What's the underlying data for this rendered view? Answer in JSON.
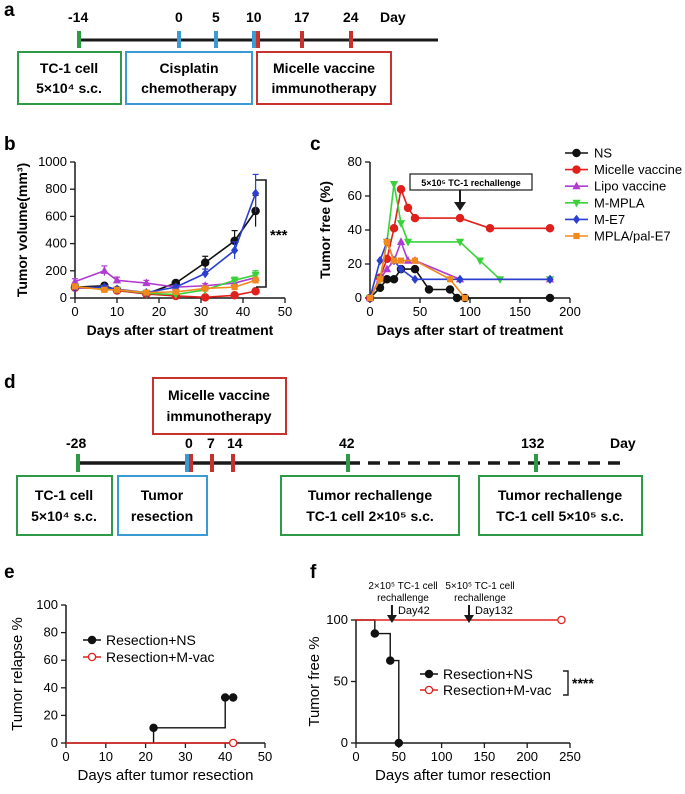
{
  "panels": {
    "a": {
      "letter": "a",
      "axis_label": "Day",
      "days": [
        "-14",
        "0",
        "5",
        "10",
        "17",
        "24"
      ],
      "boxes": [
        {
          "line1": "TC-1 cell",
          "line2": "5×10⁴ s.c.",
          "color": "#2e9a47"
        },
        {
          "line1": "Cisplatin",
          "line2": "chemotherapy",
          "color": "#3a9ad3"
        },
        {
          "line1": "Micelle vaccine",
          "line2": "immunotherapy",
          "color": "#c8322e"
        }
      ]
    },
    "d": {
      "letter": "d",
      "axis_label": "Day",
      "days": [
        "-28",
        "0",
        "7",
        "14",
        "42",
        "132"
      ],
      "top_box": {
        "line1": "Micelle vaccine",
        "line2": "immunotherapy"
      },
      "boxes": [
        {
          "line1": "TC-1 cell",
          "line2": "5×10⁴ s.c."
        },
        {
          "line1": "Tumor",
          "line2": "resection"
        },
        {
          "line1": "Tumor rechallenge",
          "line2": "TC-1 cell 2×10⁵ s.c."
        },
        {
          "line1": "Tumor rechallenge",
          "line2": "TC-1 cell 5×10⁵ s.c."
        }
      ]
    }
  },
  "colors": {
    "green": "#2e9a47",
    "blue": "#3a9ad3",
    "red": "#c8322e",
    "ns": "#111111",
    "micelle": "#e0201b",
    "lipo": "#b03bd1",
    "mmpla": "#3bd13b",
    "me7": "#2a3fd1",
    "mpla": "#f08a1e"
  },
  "chart_data": [
    {
      "panel": "b",
      "type": "line",
      "xlabel": "Days after start of treatment",
      "ylabel": "Tumor volume(mm³)",
      "xlim": [
        0,
        50
      ],
      "ylim": [
        0,
        1000
      ],
      "xticks": [
        "0",
        "10",
        "20",
        "30",
        "40",
        "50"
      ],
      "yticks": [
        "0",
        "200",
        "400",
        "600",
        "800",
        "1000"
      ],
      "annotation": "***",
      "x": [
        0,
        7,
        10,
        17,
        24,
        31,
        38,
        43
      ],
      "series": [
        {
          "name": "NS",
          "key": "ns",
          "values": [
            80,
            90,
            60,
            30,
            110,
            260,
            420,
            640
          ]
        },
        {
          "name": "Micelle vaccine",
          "key": "micelle",
          "values": [
            75,
            70,
            55,
            30,
            15,
            5,
            20,
            50
          ]
        },
        {
          "name": "Lipo vaccine",
          "key": "lipo",
          "values": [
            120,
            200,
            130,
            110,
            80,
            90,
            110,
            150
          ]
        },
        {
          "name": "M-MPLA",
          "key": "mmpla",
          "values": [
            80,
            70,
            60,
            35,
            25,
            60,
            130,
            170
          ]
        },
        {
          "name": "M-E7",
          "key": "me7",
          "values": [
            75,
            80,
            65,
            40,
            80,
            180,
            350,
            770
          ]
        },
        {
          "name": "MPLA/pal-E7",
          "key": "mpla",
          "values": [
            85,
            60,
            60,
            40,
            45,
            70,
            80,
            130
          ]
        }
      ]
    },
    {
      "panel": "c",
      "type": "line",
      "xlabel": "Days after start of treatment",
      "ylabel": "Tumor free (%)",
      "xlim": [
        0,
        200
      ],
      "ylim": [
        0,
        80
      ],
      "xticks": [
        "0",
        "50",
        "100",
        "150",
        "200"
      ],
      "yticks": [
        "0",
        "20",
        "40",
        "60",
        "80"
      ],
      "rechallenge_label": "5×10⁵ TC-1 rechallenge",
      "series": [
        {
          "name": "NS",
          "key": "ns",
          "x": [
            0,
            10,
            17,
            24,
            31,
            45,
            59,
            80,
            87,
            95,
            180
          ],
          "values": [
            0,
            6,
            11,
            11,
            17,
            17,
            5,
            5,
            0,
            0,
            0
          ]
        },
        {
          "name": "Micelle vaccine",
          "key": "micelle",
          "x": [
            0,
            10,
            17,
            24,
            31,
            38,
            45,
            90,
            120,
            180
          ],
          "values": [
            0,
            12,
            23,
            41,
            64,
            53,
            47,
            47,
            41,
            41
          ]
        },
        {
          "name": "Lipo vaccine",
          "key": "lipo",
          "x": [
            0,
            10,
            17,
            24,
            31,
            38,
            45,
            90,
            180
          ],
          "values": [
            0,
            11,
            17,
            22,
            33,
            22,
            22,
            11,
            11
          ]
        },
        {
          "name": "M-MPLA",
          "key": "mmpla",
          "x": [
            0,
            10,
            17,
            24,
            31,
            38,
            90,
            110,
            130,
            180
          ],
          "values": [
            0,
            11,
            33,
            67,
            44,
            33,
            33,
            22,
            11,
            11
          ]
        },
        {
          "name": "M-E7",
          "key": "me7",
          "x": [
            0,
            10,
            17,
            24,
            31,
            45,
            90,
            180
          ],
          "values": [
            0,
            22,
            33,
            22,
            17,
            11,
            11,
            11
          ]
        },
        {
          "name": "MPLA/pal-E7",
          "key": "mpla",
          "x": [
            0,
            10,
            17,
            24,
            31,
            45,
            80,
            95
          ],
          "values": [
            0,
            11,
            33,
            22,
            22,
            22,
            11,
            0
          ]
        }
      ]
    },
    {
      "panel": "e",
      "type": "line",
      "xlabel": "Days after tumor resection",
      "ylabel": "Tumor relapse %",
      "xlim": [
        0,
        50
      ],
      "ylim": [
        0,
        100
      ],
      "xticks": [
        "0",
        "10",
        "20",
        "30",
        "40",
        "50"
      ],
      "yticks": [
        "0",
        "20",
        "40",
        "60",
        "80",
        "100"
      ],
      "series": [
        {
          "name": "Resection+NS",
          "key": "ns",
          "x": [
            22,
            22,
            40,
            40,
            42
          ],
          "values": [
            0,
            11,
            11,
            33,
            33
          ]
        },
        {
          "name": "Resection+M-vac",
          "key": "micelle",
          "x": [
            0,
            42
          ],
          "values": [
            0,
            0
          ]
        }
      ]
    },
    {
      "panel": "f",
      "type": "line",
      "xlabel": "Days after tumor resection",
      "ylabel": "Tumor free %",
      "xlim": [
        0,
        250
      ],
      "ylim": [
        0,
        100
      ],
      "xticks": [
        "0",
        "50",
        "100",
        "150",
        "200",
        "250"
      ],
      "yticks": [
        "0",
        "50",
        "100"
      ],
      "annotation": "****",
      "rechallenge_1": {
        "line1": "2×10⁵ TC-1 cell",
        "line2": "rechallenge",
        "day": "Day42"
      },
      "rechallenge_2": {
        "line1": "5×10⁵ TC-1 cell",
        "line2": "rechallenge",
        "day": "Day132"
      },
      "series": [
        {
          "name": "Resection+NS",
          "key": "ns",
          "x": [
            0,
            22,
            22,
            40,
            40,
            50,
            50
          ],
          "values": [
            100,
            100,
            89,
            89,
            67,
            67,
            0
          ]
        },
        {
          "name": "Resection+M-vac",
          "key": "micelle",
          "x": [
            0,
            240
          ],
          "values": [
            100,
            100
          ]
        }
      ]
    }
  ]
}
